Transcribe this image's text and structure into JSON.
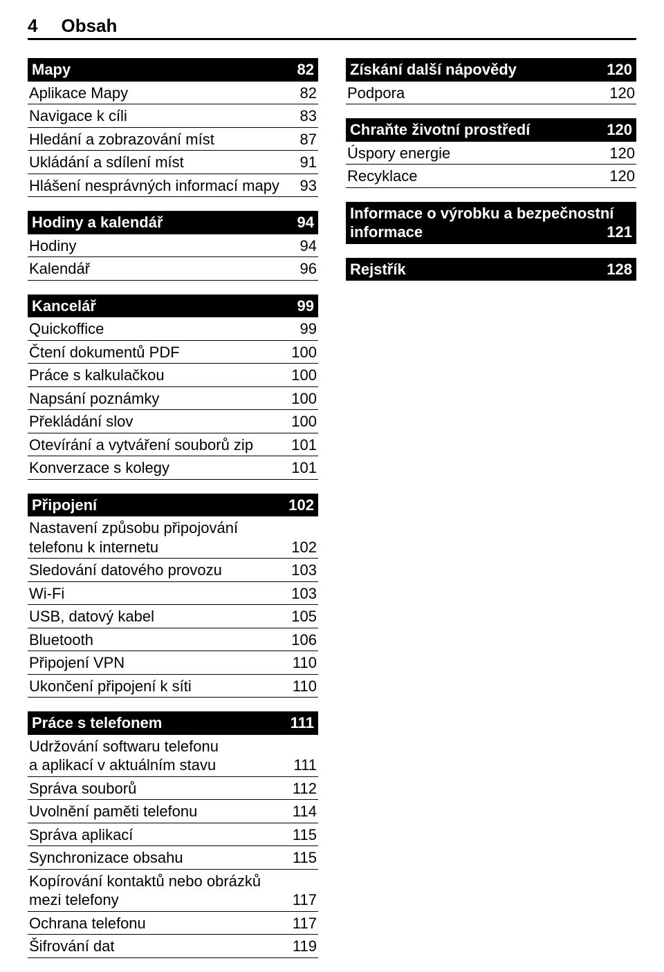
{
  "header": {
    "page_number": "4",
    "title": "Obsah"
  },
  "left": [
    {
      "type": "section",
      "title": "Mapy",
      "page": "82",
      "items": [
        {
          "label": "Aplikace Mapy",
          "page": "82"
        },
        {
          "label": "Navigace k cíli",
          "page": "83"
        },
        {
          "label": "Hledání a zobrazování míst",
          "page": "87"
        },
        {
          "label": "Ukládání a sdílení míst",
          "page": "91"
        },
        {
          "label": "Hlášení nesprávných informací mapy",
          "page": "93",
          "inline": true
        }
      ]
    },
    {
      "type": "section",
      "title": "Hodiny a kalendář",
      "page": "94",
      "items": [
        {
          "label": "Hodiny",
          "page": "94"
        },
        {
          "label": "Kalendář",
          "page": "96"
        }
      ]
    },
    {
      "type": "section",
      "title": "Kancelář",
      "page": "99",
      "items": [
        {
          "label": "Quickoffice",
          "page": "99"
        },
        {
          "label": "Čtení dokumentů PDF",
          "page": "100"
        },
        {
          "label": "Práce s kalkulačkou",
          "page": "100"
        },
        {
          "label": "Napsání poznámky",
          "page": "100"
        },
        {
          "label": "Překládání slov",
          "page": "100"
        },
        {
          "label": "Otevírání a vytváření souborů zip",
          "page": "101"
        },
        {
          "label": "Konverzace s kolegy",
          "page": "101"
        }
      ]
    },
    {
      "type": "section",
      "title": "Připojení",
      "page": "102",
      "items": [
        {
          "label_line1": "Nastavení způsobu připojování",
          "label_line2": "telefonu k internetu",
          "page": "102",
          "multiline": true
        },
        {
          "label": "Sledování datového provozu",
          "page": "103"
        },
        {
          "label": "Wi-Fi",
          "page": "103"
        },
        {
          "label": "USB, datový kabel",
          "page": "105"
        },
        {
          "label": "Bluetooth",
          "page": "106"
        },
        {
          "label": "Připojení VPN",
          "page": "110"
        },
        {
          "label": "Ukončení připojení k síti",
          "page": "110"
        }
      ]
    },
    {
      "type": "section",
      "title": "Práce s telefonem",
      "page": "111",
      "items": [
        {
          "label_line1": "Udržování softwaru telefonu",
          "label_line2": "a aplikací v aktuálním stavu",
          "page": "111",
          "multiline": true
        },
        {
          "label": "Správa souborů",
          "page": "112"
        },
        {
          "label": "Uvolnění paměti telefonu",
          "page": "114"
        },
        {
          "label": "Správa aplikací",
          "page": "115"
        },
        {
          "label": "Synchronizace obsahu",
          "page": "115"
        },
        {
          "label_line1": "Kopírování kontaktů nebo obrázků",
          "label_line2": "mezi telefony",
          "page": "117",
          "multiline": true
        },
        {
          "label": "Ochrana telefonu",
          "page": "117"
        },
        {
          "label": "Šifrování dat",
          "page": "119"
        }
      ]
    }
  ],
  "right": [
    {
      "type": "section",
      "title": "Získání další nápovědy",
      "page": "120",
      "items": [
        {
          "label": "Podpora",
          "page": "120"
        }
      ]
    },
    {
      "type": "section",
      "title": "Chraňte životní prostředí",
      "page": "120",
      "items": [
        {
          "label": "Úspory energie",
          "page": "120"
        },
        {
          "label": "Recyklace",
          "page": "120"
        }
      ]
    },
    {
      "type": "section_multiline",
      "title_line1": "Informace o výrobku a bezpečnostní",
      "title_line2": "informace",
      "page": "121",
      "items": []
    },
    {
      "type": "section",
      "title": "Rejstřík",
      "page": "128",
      "items": []
    }
  ]
}
